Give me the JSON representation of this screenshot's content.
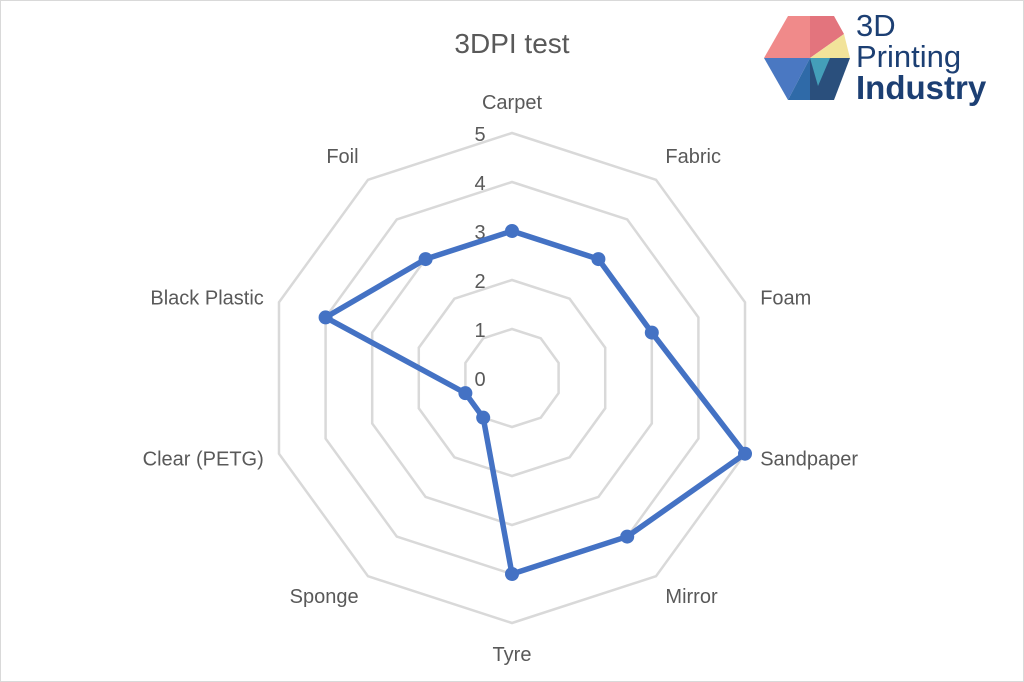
{
  "chart_data": {
    "type": "radar",
    "title": "3DPI test",
    "categories": [
      "Carpet",
      "Fabric",
      "Foam",
      "Sandpaper",
      "Mirror",
      "Tyre",
      "Sponge",
      "Clear (PETG)",
      "Black Plastic",
      "Foil"
    ],
    "series": [
      {
        "values": [
          3,
          3,
          3,
          5,
          4,
          4,
          1,
          1,
          4,
          3
        ]
      }
    ],
    "rlim": [
      0,
      5
    ],
    "rticks": [
      "0",
      "1",
      "2",
      "3",
      "4",
      "5"
    ],
    "grid": true,
    "colors": {
      "series": "#4472c4",
      "grid": "#d9d9d9",
      "text": "#595959"
    }
  },
  "logo": {
    "line1": "3D",
    "line2": "Printing",
    "line3": "Industry",
    "color": "#1c3f73"
  }
}
